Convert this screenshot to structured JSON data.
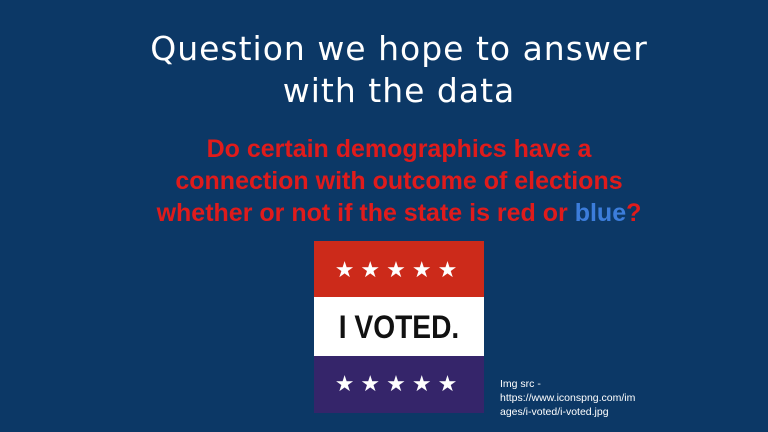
{
  "slide": {
    "title_line1": "Question we hope to answer",
    "title_line2": "with the data",
    "question_line1": "Do certain demographics have a",
    "question_line2": "connection with outcome of elections",
    "question_line3_start": "whether or not if the state is red or ",
    "question_line3_blue": "blue",
    "question_line3_end": "?"
  },
  "image": {
    "badge_text": "I VOTED.",
    "stars_top": "★★★★★",
    "stars_bottom": "★★★★★",
    "colors": {
      "background": "#0c3866",
      "red": "#cc2a1a",
      "purple": "#35256a",
      "question_red": "#e01b1b",
      "question_blue": "#3c7ddb"
    }
  },
  "credit": {
    "line1": "Img src -",
    "line2": "https://www.iconspng.com/im",
    "line3": "ages/i-voted/i-voted.jpg"
  }
}
